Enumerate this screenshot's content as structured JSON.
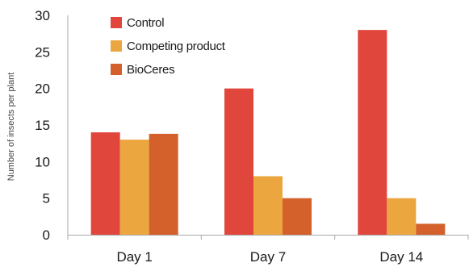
{
  "chart_data": {
    "type": "bar",
    "title": "",
    "xlabel": "",
    "ylabel": "Number of insects per plant",
    "categories": [
      "Day 1",
      "Day 7",
      "Day 14"
    ],
    "ylim": [
      0,
      30
    ],
    "yticks": [
      0,
      5,
      10,
      15,
      20,
      25,
      30
    ],
    "grid": false,
    "legend_position": "top-left",
    "series": [
      {
        "name": "Control",
        "color": "#e0463c",
        "values": [
          14,
          20,
          28
        ]
      },
      {
        "name": "Competing product",
        "color": "#eca63f",
        "values": [
          13,
          8,
          5
        ]
      },
      {
        "name": "BioCeres",
        "color": "#d4602b",
        "values": [
          13.8,
          5,
          1.5
        ]
      }
    ]
  }
}
